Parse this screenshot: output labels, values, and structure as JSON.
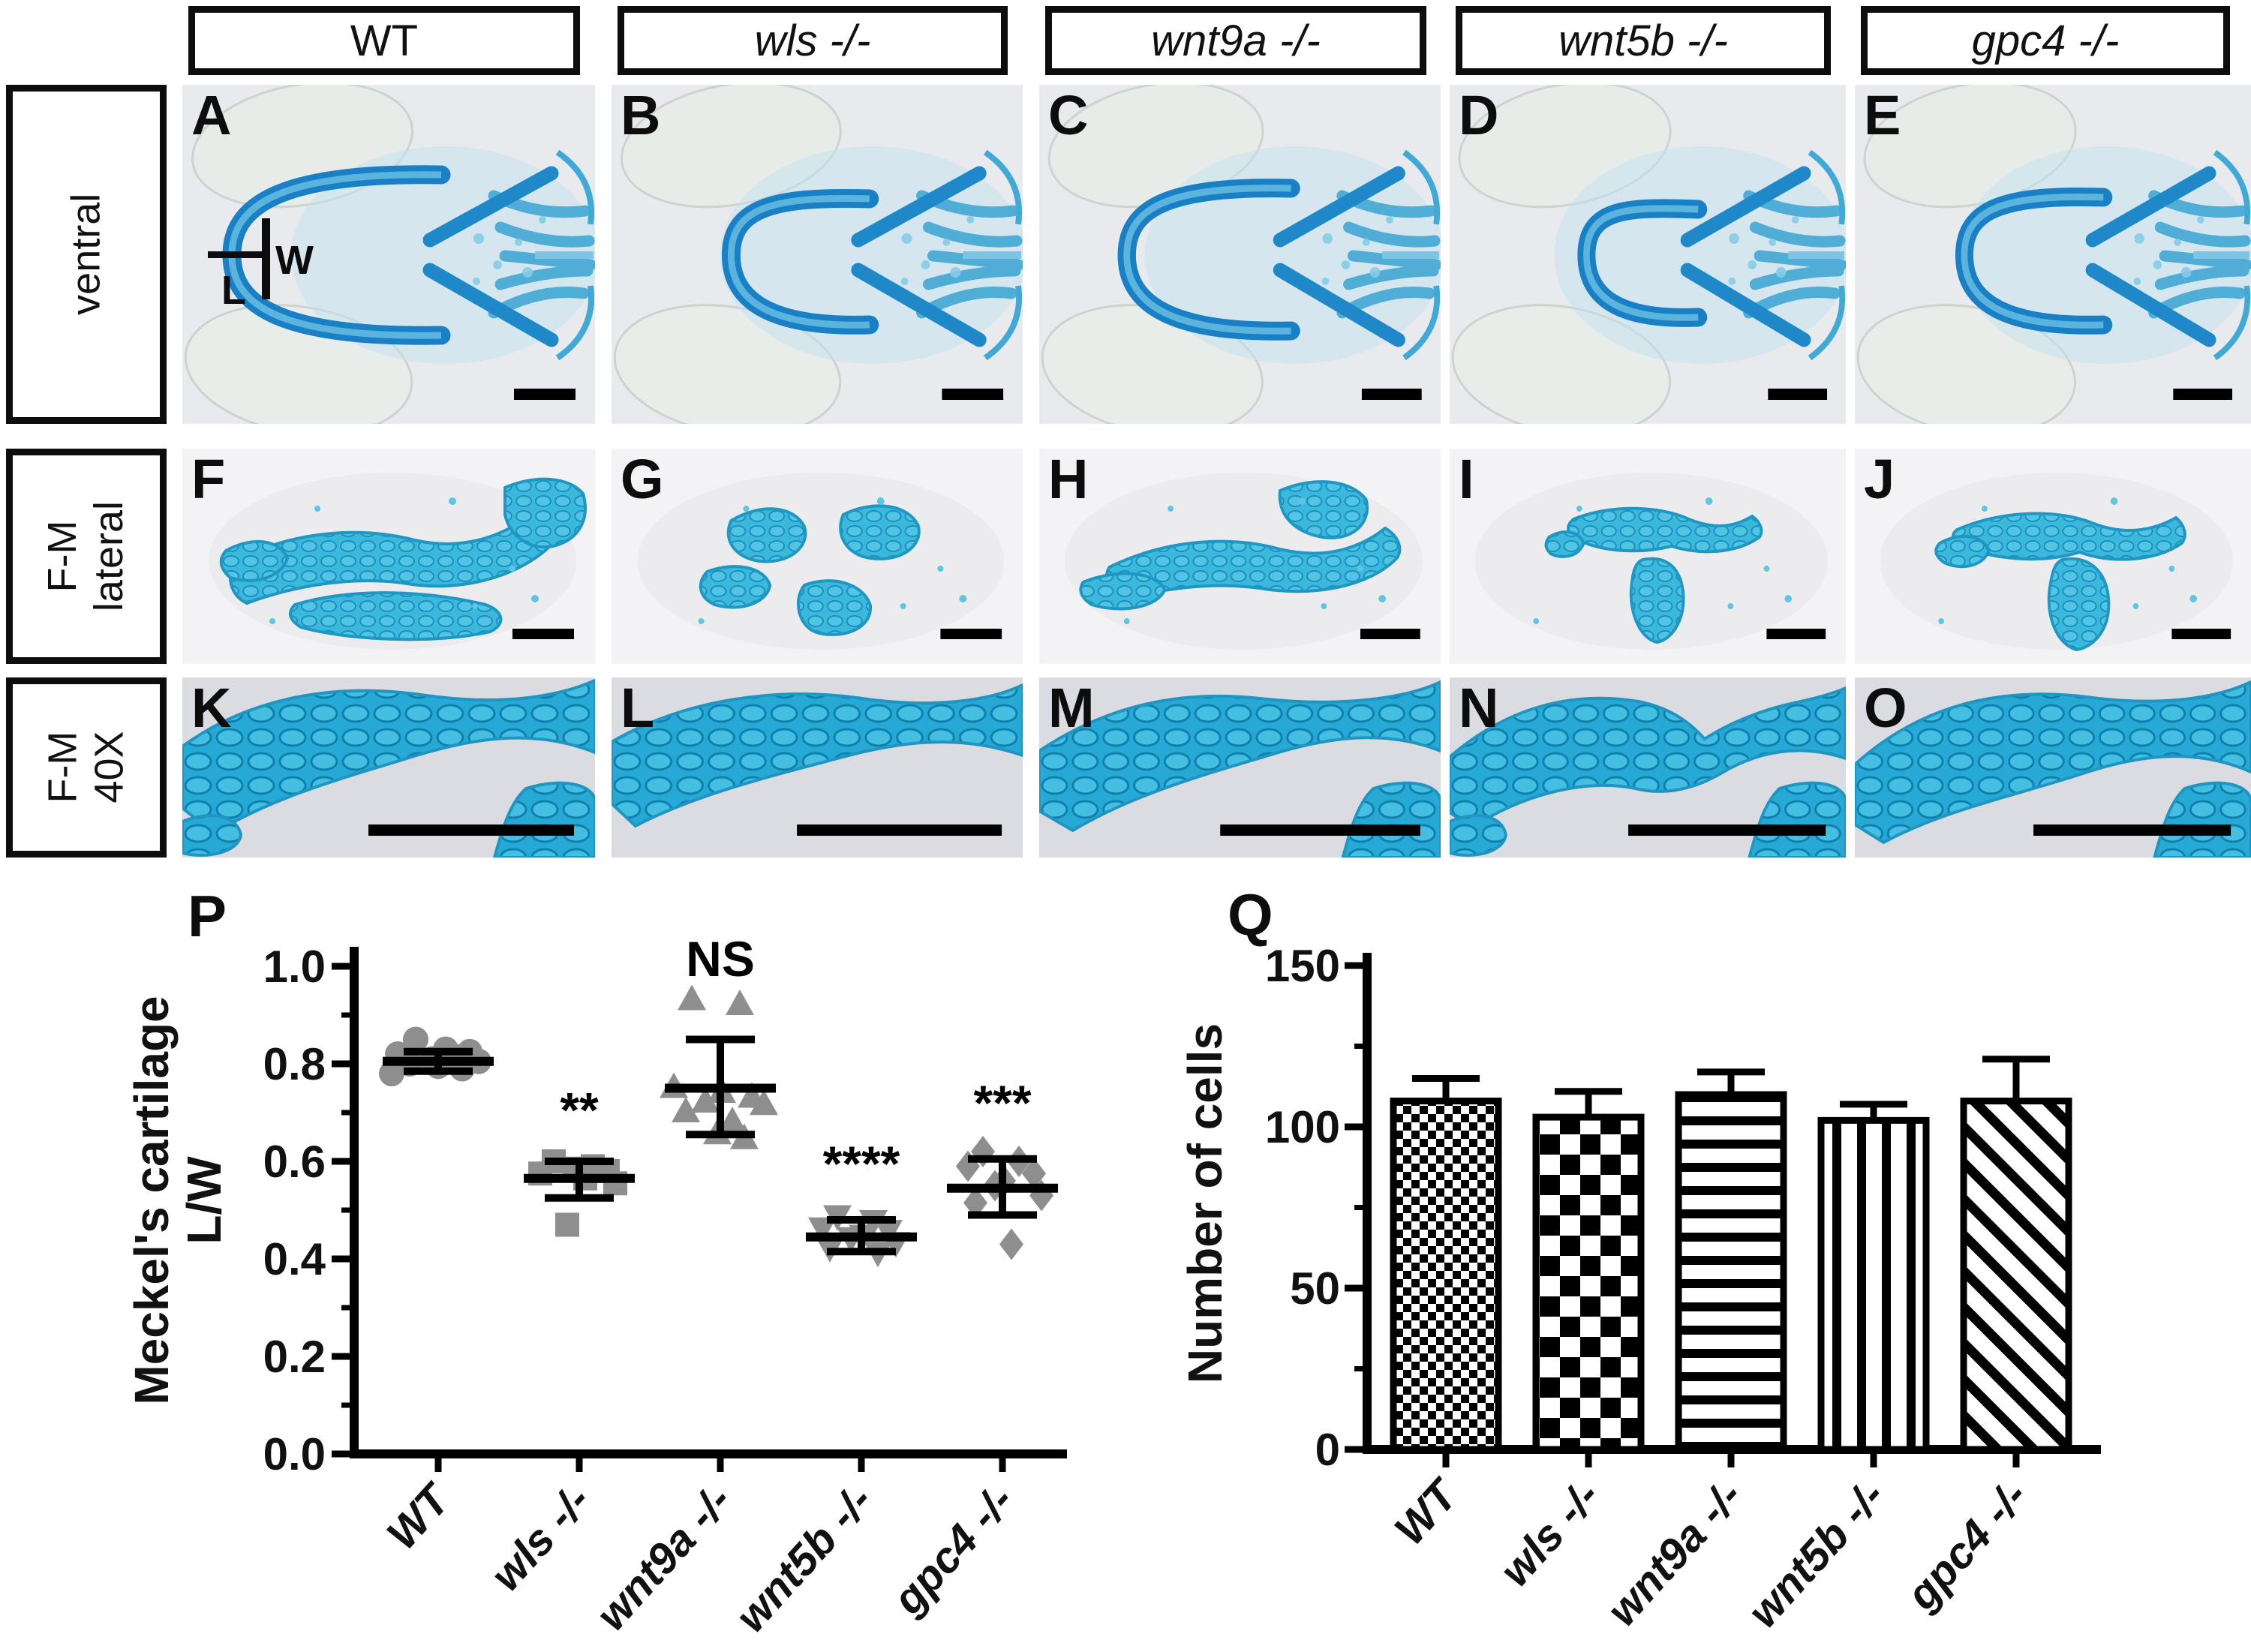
{
  "figure": {
    "column_headers": [
      {
        "label": "WT",
        "italic": false
      },
      {
        "label": "wls -/-",
        "italic": true
      },
      {
        "label": "wnt9a -/-",
        "italic": true
      },
      {
        "label": "wnt5b -/-",
        "italic": true
      },
      {
        "label": "gpc4 -/-",
        "italic": true
      }
    ],
    "row_labels": [
      {
        "lines": [
          "ventral",
          ""
        ]
      },
      {
        "lines": [
          "F-M",
          "lateral"
        ]
      },
      {
        "lines": [
          "F-M",
          "40X"
        ]
      }
    ],
    "panels": [
      {
        "letter": "A",
        "row": "ventral",
        "column": "WT"
      },
      {
        "letter": "B",
        "row": "ventral",
        "column": "wls -/-"
      },
      {
        "letter": "C",
        "row": "ventral",
        "column": "wnt9a -/-"
      },
      {
        "letter": "D",
        "row": "ventral",
        "column": "wnt5b -/-"
      },
      {
        "letter": "E",
        "row": "ventral",
        "column": "gpc4 -/-"
      },
      {
        "letter": "F",
        "row": "F-M lateral",
        "column": "WT"
      },
      {
        "letter": "G",
        "row": "F-M lateral",
        "column": "wls -/-"
      },
      {
        "letter": "H",
        "row": "F-M lateral",
        "column": "wnt9a -/-"
      },
      {
        "letter": "I",
        "row": "F-M lateral",
        "column": "wnt5b -/-"
      },
      {
        "letter": "J",
        "row": "F-M lateral",
        "column": "gpc4 -/-"
      },
      {
        "letter": "K",
        "row": "F-M 40X",
        "column": "WT"
      },
      {
        "letter": "L",
        "row": "F-M 40X",
        "column": "wls -/-"
      },
      {
        "letter": "M",
        "row": "F-M 40X",
        "column": "wnt9a -/-"
      },
      {
        "letter": "N",
        "row": "F-M 40X",
        "column": "wnt5b -/-"
      },
      {
        "letter": "O",
        "row": "F-M 40X",
        "column": "gpc4 -/-"
      }
    ],
    "panel_a_annotation": {
      "width_label": "W",
      "length_label": "L"
    },
    "stain_color": "#1f89c9",
    "scale_bar_color": "#000000"
  },
  "chart_data": [
    {
      "id": "P",
      "type": "scatter",
      "panel_label": "P",
      "ylabel_lines": [
        "Meckel's cartilage",
        "L/W"
      ],
      "ylim": [
        0.0,
        1.0
      ],
      "yticks": [
        0.0,
        0.2,
        0.4,
        0.6,
        0.8,
        1.0
      ],
      "ytick_labels": [
        "0.0",
        "0.2",
        "0.4",
        "0.6",
        "0.8",
        "1.0"
      ],
      "yminor": [
        0.1,
        0.3,
        0.5,
        0.7,
        0.9
      ],
      "marker_color": "#8e8e8e",
      "categories": [
        "WT",
        "wls -/-",
        "wnt9a -/-",
        "wnt5b -/-",
        "gpc4 -/-"
      ],
      "groups": [
        {
          "category": "WT",
          "marker": "circle",
          "significance": "",
          "values": [
            0.85,
            0.83,
            0.825,
            0.82,
            0.815,
            0.81,
            0.805,
            0.8,
            0.795,
            0.79,
            0.78
          ],
          "mean": 0.805,
          "err_low": 0.785,
          "err_high": 0.825
        },
        {
          "category": "wls -/-",
          "marker": "square",
          "significance": "**",
          "sig_y": 0.67,
          "values": [
            0.6,
            0.59,
            0.585,
            0.58,
            0.575,
            0.565,
            0.555,
            0.47
          ],
          "mean": 0.565,
          "err_low": 0.525,
          "err_high": 0.6
        },
        {
          "category": "wnt9a -/-",
          "marker": "triangle-up",
          "significance": "NS",
          "sig_y": 0.98,
          "values": [
            0.93,
            0.92,
            0.75,
            0.74,
            0.73,
            0.72,
            0.715,
            0.7,
            0.68,
            0.655,
            0.645
          ],
          "mean": 0.75,
          "err_low": 0.655,
          "err_high": 0.85
        },
        {
          "category": "wnt5b -/-",
          "marker": "triangle-down",
          "significance": "****",
          "sig_y": 0.56,
          "values": [
            0.49,
            0.48,
            0.465,
            0.46,
            0.45,
            0.445,
            0.435,
            0.425,
            0.415
          ],
          "mean": 0.445,
          "err_low": 0.415,
          "err_high": 0.48
        },
        {
          "category": "gpc4 -/-",
          "marker": "diamond",
          "significance": "***",
          "sig_y": 0.685,
          "values": [
            0.62,
            0.6,
            0.59,
            0.575,
            0.56,
            0.55,
            0.53,
            0.515,
            0.43
          ],
          "mean": 0.545,
          "err_low": 0.49,
          "err_high": 0.605
        }
      ]
    },
    {
      "id": "Q",
      "type": "bar",
      "panel_label": "Q",
      "ylabel": "Number of cells",
      "ylim": [
        0,
        150
      ],
      "yticks": [
        0,
        50,
        100,
        150
      ],
      "ytick_labels": [
        "0",
        "50",
        "100",
        "150"
      ],
      "yminor": [
        25,
        75,
        125
      ],
      "categories": [
        "WT",
        "wls -/-",
        "wnt9a -/-",
        "wnt5b -/-",
        "gpc4 -/-"
      ],
      "values": [
        108,
        103,
        110,
        102,
        108
      ],
      "errors": [
        7,
        8,
        7,
        5,
        13
      ],
      "patterns": [
        "checker-fine",
        "checker-coarse",
        "horizontal-stripes",
        "vertical-stripes",
        "diagonal-stripes"
      ],
      "bar_fill": "#ffffff",
      "bar_stroke": "#000000"
    }
  ]
}
